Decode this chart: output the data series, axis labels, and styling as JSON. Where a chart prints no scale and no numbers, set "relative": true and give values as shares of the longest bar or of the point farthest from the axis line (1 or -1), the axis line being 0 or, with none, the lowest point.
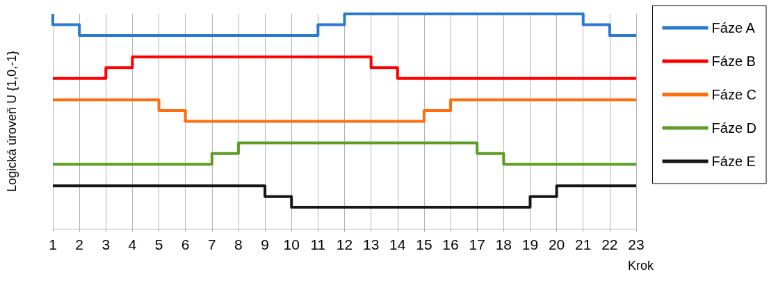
{
  "chart_data": {
    "type": "step",
    "xlabel": "Krok",
    "ylabel": "Logická úroveň U {1,0,-1}",
    "x": [
      1,
      2,
      3,
      4,
      5,
      6,
      7,
      8,
      9,
      10,
      11,
      12,
      13,
      14,
      15,
      16,
      17,
      18,
      19,
      20,
      21,
      22,
      23
    ],
    "xlim": [
      1,
      23
    ],
    "xticks": [
      1,
      2,
      3,
      4,
      5,
      6,
      7,
      8,
      9,
      10,
      11,
      12,
      13,
      14,
      15,
      16,
      17,
      18,
      19,
      20,
      21,
      22,
      23
    ],
    "relative": true,
    "grid": "x",
    "legend": "right",
    "marker": "none",
    "line_style": "solid",
    "series": [
      {
        "name": "Fáze A",
        "color": "#2a7ad0",
        "values": [
          1.0,
          0.95,
          0.9,
          0.9,
          0.9,
          0.9,
          0.9,
          0.9,
          0.9,
          0.9,
          0.9,
          0.95,
          1.0,
          1.0,
          1.0,
          1.0,
          1.0,
          1.0,
          1.0,
          1.0,
          1.0,
          0.95,
          0.9
        ]
      },
      {
        "name": "Fáze B",
        "color": "#ff0000",
        "values": [
          0.7,
          0.7,
          0.7,
          0.75,
          0.8,
          0.8,
          0.8,
          0.8,
          0.8,
          0.8,
          0.8,
          0.8,
          0.8,
          0.75,
          0.7,
          0.7,
          0.7,
          0.7,
          0.7,
          0.7,
          0.7,
          0.7,
          0.7
        ]
      },
      {
        "name": "Fáze C",
        "color": "#ff6d10",
        "values": [
          0.6,
          0.6,
          0.6,
          0.6,
          0.6,
          0.55,
          0.5,
          0.5,
          0.5,
          0.5,
          0.5,
          0.5,
          0.5,
          0.5,
          0.5,
          0.55,
          0.6,
          0.6,
          0.6,
          0.6,
          0.6,
          0.6,
          0.6
        ]
      },
      {
        "name": "Fáze D",
        "color": "#5a9e23",
        "values": [
          0.3,
          0.3,
          0.3,
          0.3,
          0.3,
          0.3,
          0.3,
          0.35,
          0.4,
          0.4,
          0.4,
          0.4,
          0.4,
          0.4,
          0.4,
          0.4,
          0.4,
          0.35,
          0.3,
          0.3,
          0.3,
          0.3,
          0.3
        ]
      },
      {
        "name": "Fáze E",
        "color": "#161616",
        "values": [
          0.2,
          0.2,
          0.2,
          0.2,
          0.2,
          0.2,
          0.2,
          0.2,
          0.2,
          0.15,
          0.1,
          0.1,
          0.1,
          0.1,
          0.1,
          0.1,
          0.1,
          0.1,
          0.1,
          0.15,
          0.2,
          0.2,
          0.2
        ]
      }
    ]
  }
}
